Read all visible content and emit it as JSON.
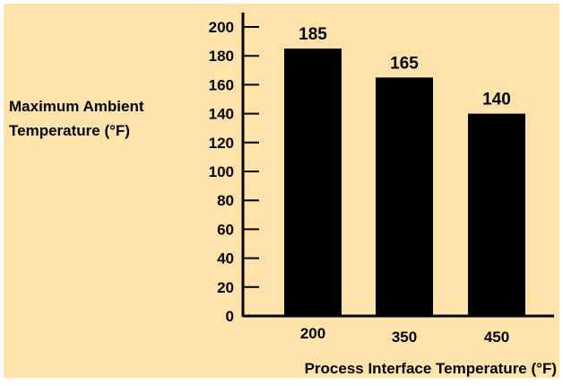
{
  "colors": {
    "background": "#FFE3AA",
    "border": "#FFFFFF",
    "bar": "#000000",
    "text": "#000000"
  },
  "chart_data": {
    "type": "bar",
    "categories": [
      "200",
      "350",
      "450"
    ],
    "values": [
      185,
      165,
      140
    ],
    "data_labels": [
      "185",
      "165",
      "140"
    ],
    "ylabel_lines": [
      "Maximum Ambient",
      "Temperature (°F)"
    ],
    "xlabel": "Process Interface Temperature (°F)",
    "ylim": [
      0,
      200
    ],
    "yticks": [
      0,
      20,
      40,
      60,
      80,
      100,
      120,
      140,
      160,
      180,
      200
    ],
    "grid": false,
    "legend": "none"
  }
}
